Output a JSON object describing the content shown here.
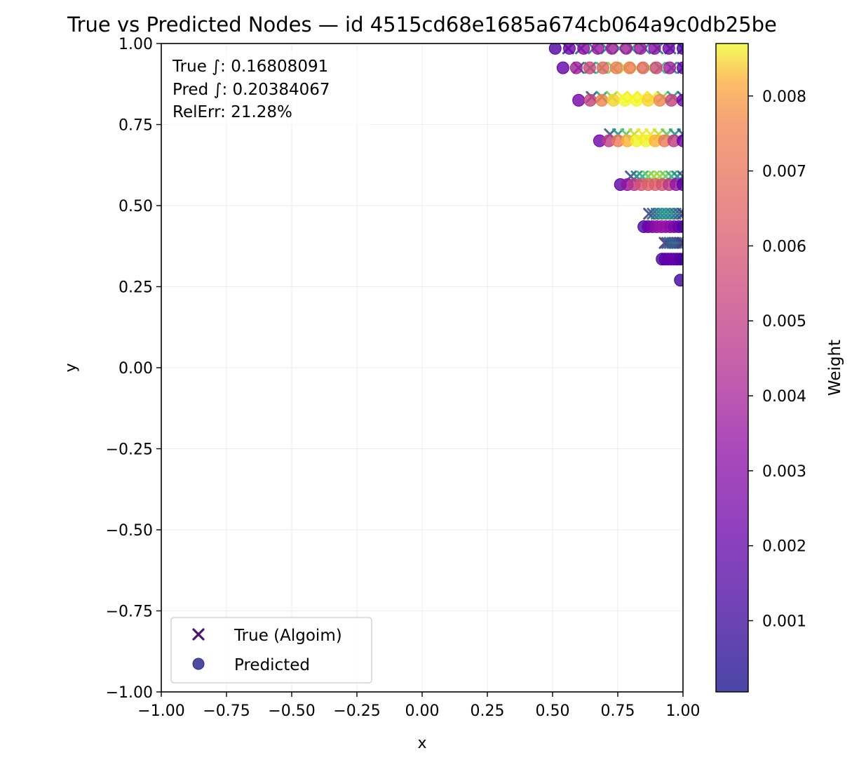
{
  "chart_data": {
    "type": "scatter",
    "title": "True vs Predicted Nodes — id 4515cd68e1685a674cb064a9c0db25be",
    "xlabel": "x",
    "ylabel": "y",
    "xlim": [
      -1.0,
      1.0
    ],
    "ylim": [
      -1.0,
      1.0
    ],
    "xticks": [
      "−1.00",
      "−0.75",
      "−0.50",
      "−0.25",
      "0.00",
      "0.25",
      "0.50",
      "0.75",
      "1.00"
    ],
    "yticks": [
      "−1.00",
      "−0.75",
      "−0.50",
      "−0.25",
      "0.00",
      "0.25",
      "0.50",
      "0.75",
      "1.00"
    ],
    "grid": true,
    "annotation": [
      "True ∫: 0.16808091",
      "Pred ∫: 0.20384067",
      "RelErr: 21.28%"
    ],
    "legend": {
      "placement": "lower-left",
      "entries": [
        {
          "label": "True (Algoim)",
          "marker": "x",
          "color": "#4a1470"
        },
        {
          "label": "Predicted",
          "marker": "o",
          "color": "#2d2e8f"
        }
      ]
    },
    "colorbar": {
      "label": "Weight",
      "colormap": "plasma",
      "range": [
        5e-05,
        0.0087
      ],
      "ticks": [
        "0.001",
        "0.002",
        "0.003",
        "0.004",
        "0.005",
        "0.006",
        "0.007",
        "0.008"
      ]
    },
    "true_rows": [
      {
        "y": 0.985,
        "x_start": 0.56,
        "n": 10
      },
      {
        "y": 0.925,
        "x_start": 0.6,
        "n": 10
      },
      {
        "y": 0.835,
        "x_start": 0.65,
        "n": 10
      },
      {
        "y": 0.72,
        "x_start": 0.72,
        "n": 10
      },
      {
        "y": 0.59,
        "x_start": 0.8,
        "n": 10
      },
      {
        "y": 0.475,
        "x_start": 0.87,
        "n": 10
      },
      {
        "y": 0.385,
        "x_start": 0.93,
        "n": 8
      }
    ],
    "predicted_rows": [
      {
        "y": 0.985,
        "x_start": 0.51,
        "n": 10
      },
      {
        "y": 0.925,
        "x_start": 0.54,
        "n": 10
      },
      {
        "y": 0.825,
        "x_start": 0.6,
        "n": 10
      },
      {
        "y": 0.7,
        "x_start": 0.68,
        "n": 10
      },
      {
        "y": 0.565,
        "x_start": 0.76,
        "n": 10
      },
      {
        "y": 0.435,
        "x_start": 0.85,
        "n": 10
      },
      {
        "y": 0.335,
        "x_start": 0.92,
        "n": 8
      },
      {
        "y": 0.27,
        "x_start": 0.99,
        "n": 1
      }
    ]
  }
}
